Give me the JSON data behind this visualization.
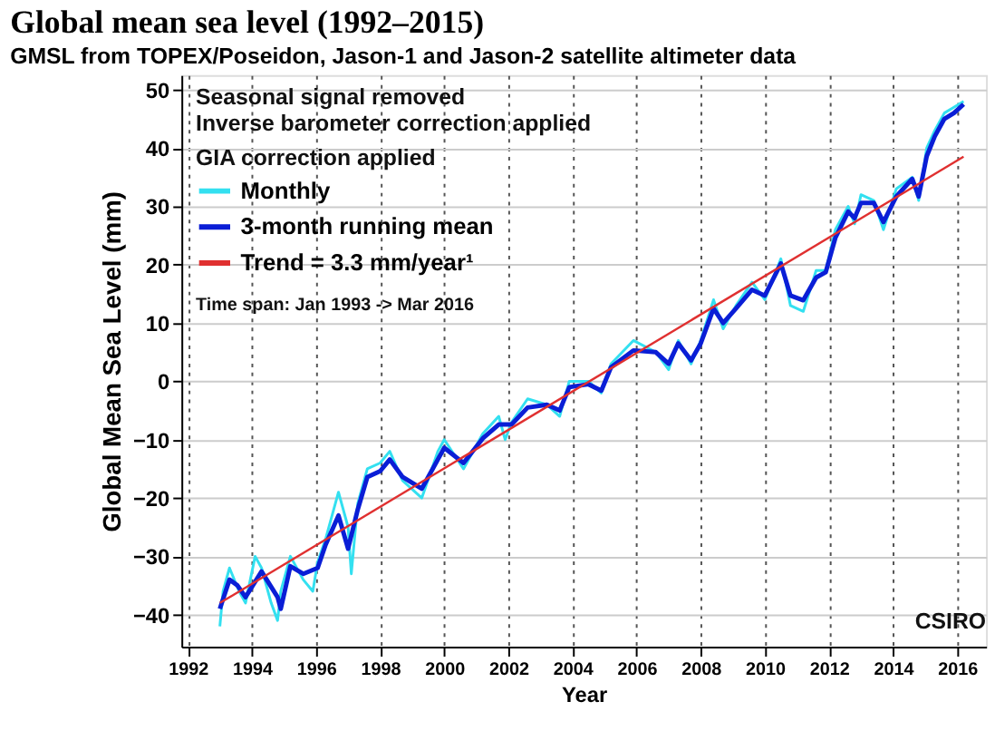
{
  "chart_data": {
    "type": "line",
    "title": "Global mean sea level (1992–2015)",
    "subtitle": "GMSL from TOPEX/Poseidon, Jason-1 and Jason-2 satellite altimeter data",
    "xlabel": "Year",
    "ylabel": "Global Mean Sea Level (mm)",
    "annotations": [
      "Seasonal signal removed",
      "Inverse barometer correction applied",
      "GIA correction applied",
      "Time span: Jan 1993 -> Mar 2016",
      "CSIRO"
    ],
    "series": [
      {
        "name": "Monthly",
        "color": "#33e0f0",
        "x": [
          1993.0,
          1993.1,
          1993.3,
          1993.6,
          1993.8,
          1994.1,
          1994.3,
          1994.6,
          1994.8,
          1994.9,
          1995.2,
          1995.6,
          1995.9,
          1996.05,
          1996.3,
          1996.7,
          1997.0,
          1997.1,
          1997.3,
          1997.6,
          1998.0,
          1998.3,
          1998.7,
          1999.3,
          1999.8,
          2000.0,
          2000.6,
          2001.2,
          2001.7,
          2001.9,
          2002.1,
          2002.6,
          2003.2,
          2003.6,
          2003.9,
          2004.5,
          2004.9,
          2005.2,
          2005.9,
          2006.6,
          2007.0,
          2007.3,
          2007.7,
          2008.0,
          2008.4,
          2008.7,
          2009.1,
          2009.6,
          2010.0,
          2010.5,
          2010.8,
          2011.2,
          2011.6,
          2011.9,
          2012.2,
          2012.6,
          2012.8,
          2013.0,
          2013.4,
          2013.7,
          2014.1,
          2014.6,
          2014.8,
          2015.05,
          2015.3,
          2015.6,
          2015.9,
          2016.2
        ],
        "values": [
          -42,
          -36,
          -32,
          -36,
          -38,
          -30,
          -32,
          -38,
          -41,
          -36,
          -30,
          -34,
          -36,
          -31,
          -27,
          -19,
          -25,
          -33,
          -21,
          -15,
          -14,
          -12,
          -17,
          -20,
          -12,
          -10,
          -15,
          -9,
          -6,
          -10,
          -7,
          -3,
          -4,
          -6,
          0,
          0,
          -2,
          3,
          7,
          5,
          2,
          7,
          3,
          7,
          14,
          9,
          13,
          17,
          14,
          21,
          13,
          12,
          19,
          19,
          26,
          30,
          27,
          32,
          31,
          26,
          33,
          35,
          31,
          40,
          43,
          46,
          47,
          48
        ]
      },
      {
        "name": "3-month running mean",
        "color": "#0a1ed6",
        "x": [
          1993.0,
          1993.3,
          1993.55,
          1993.8,
          1994.3,
          1994.8,
          1994.9,
          1995.2,
          1995.6,
          1996.05,
          1996.3,
          1996.7,
          1997.0,
          1997.3,
          1997.6,
          1998.0,
          1998.3,
          1998.7,
          1999.3,
          1999.8,
          2000.0,
          2000.6,
          2001.2,
          2001.7,
          2002.1,
          2002.6,
          2003.2,
          2003.6,
          2003.9,
          2004.5,
          2004.9,
          2005.2,
          2005.9,
          2006.6,
          2007.0,
          2007.3,
          2007.7,
          2008.0,
          2008.4,
          2008.7,
          2009.1,
          2009.6,
          2010.0,
          2010.5,
          2010.8,
          2011.2,
          2011.6,
          2011.9,
          2012.2,
          2012.6,
          2012.8,
          2013.0,
          2013.4,
          2013.7,
          2014.1,
          2014.6,
          2014.8,
          2015.05,
          2015.3,
          2015.6,
          2015.9,
          2016.2
        ],
        "values": [
          -39,
          -34,
          -35,
          -37,
          -32.6,
          -37,
          -39,
          -31.7,
          -33,
          -32,
          -28,
          -23,
          -28.7,
          -22,
          -16.4,
          -15.4,
          -13.4,
          -16.4,
          -18.4,
          -13.4,
          -11.4,
          -14,
          -9.8,
          -7.4,
          -7.4,
          -4.5,
          -4,
          -5,
          -1,
          -0.5,
          -1.6,
          2.4,
          5.3,
          5,
          3,
          6.5,
          3.6,
          6.5,
          12.5,
          10,
          12.5,
          15.7,
          14.7,
          20.2,
          14.7,
          13.9,
          17.8,
          18.7,
          24.6,
          29.1,
          28,
          30.6,
          30.6,
          27.3,
          31.7,
          34.7,
          31.7,
          38.6,
          42,
          45,
          46,
          47.5
        ]
      },
      {
        "name": "Trend = 3.3 mm/year¹",
        "color": "#e03030",
        "x": [
          1993.0,
          2016.2
        ],
        "values": [
          -38,
          38.5
        ]
      }
    ],
    "xlim": [
      1991.8,
      2016.9
    ],
    "ylim": [
      -45.5,
      52.5
    ],
    "xticks": [
      1992,
      1994,
      1996,
      1998,
      2000,
      2002,
      2004,
      2006,
      2008,
      2010,
      2012,
      2014,
      2016
    ],
    "yticks": [
      -40,
      -30,
      -20,
      -10,
      0,
      10,
      20,
      30,
      40,
      50
    ],
    "grid": true,
    "legend": "top left",
    "marker": "none",
    "line_style": "solid"
  }
}
